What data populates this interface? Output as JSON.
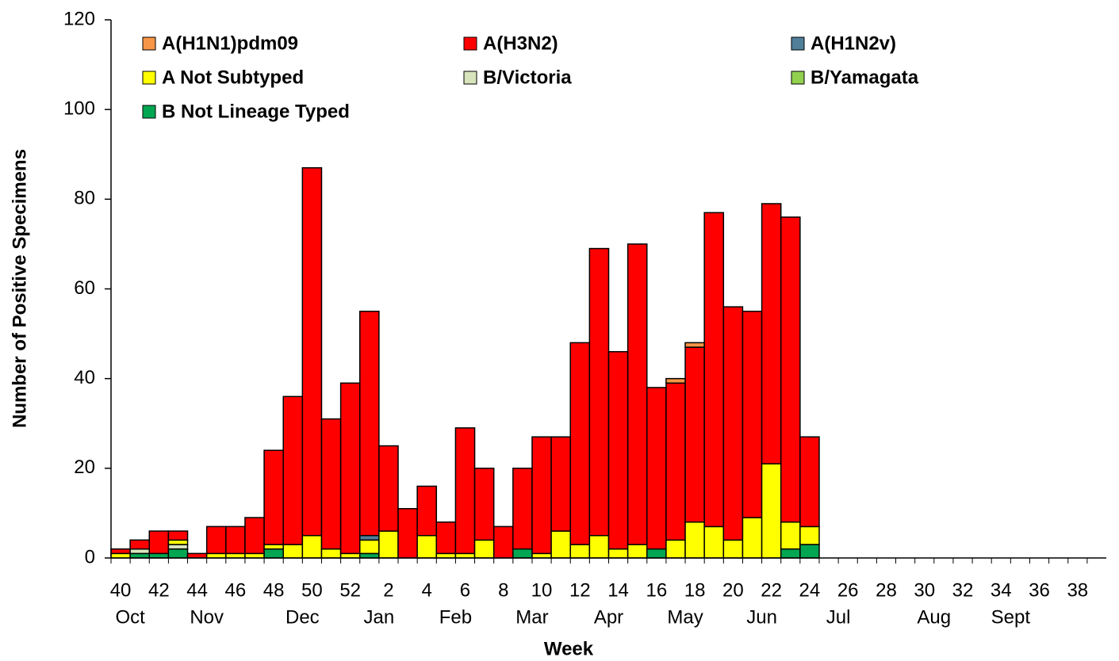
{
  "chart_data": {
    "type": "stacked_bar",
    "y_label": "Number of Positive Specimens",
    "x_label": "Week",
    "categories": [
      "40",
      null,
      "42",
      null,
      "44",
      null,
      "46",
      null,
      "48",
      null,
      "50",
      null,
      "52",
      null,
      "2",
      null,
      "4",
      null,
      "6",
      null,
      "8",
      null,
      "10",
      null,
      "12",
      null,
      "14",
      null,
      "16",
      null,
      "18",
      null,
      "20",
      null,
      "22",
      null,
      "24",
      null,
      "26",
      null,
      "28",
      null,
      "30",
      null,
      "32",
      null,
      "34",
      null,
      "36",
      null,
      "38",
      null
    ],
    "months": [
      "Oct",
      null,
      null,
      null,
      "Nov",
      null,
      null,
      null,
      null,
      "Dec",
      null,
      null,
      null,
      "Jan",
      null,
      null,
      null,
      "Feb",
      null,
      null,
      null,
      "Mar",
      null,
      null,
      null,
      "Apr",
      null,
      null,
      null,
      "May",
      null,
      null,
      null,
      "Jun",
      null,
      null,
      null,
      "Jul",
      null,
      null,
      null,
      null,
      "Aug",
      null,
      null,
      null,
      "Sept",
      null,
      null,
      null,
      null,
      null
    ],
    "ylim": [
      0,
      120
    ],
    "yticks": [
      0,
      20,
      40,
      60,
      80,
      100,
      120
    ],
    "grid": false,
    "series": [
      {
        "name": "A(H1N1)pdm09",
        "color": "#f79646",
        "values": [
          0,
          0,
          0,
          0,
          0,
          0,
          0,
          0,
          0,
          0,
          0,
          0,
          0,
          0,
          0,
          0,
          0,
          0,
          0,
          0,
          0,
          0,
          0,
          0,
          0,
          0,
          0,
          0,
          0,
          1,
          1,
          0,
          0,
          0,
          0,
          0,
          0,
          null,
          null,
          null,
          null,
          null,
          null,
          null,
          null,
          null,
          null,
          null,
          null,
          null,
          null,
          null
        ]
      },
      {
        "name": "A(H3N2)",
        "color": "#ff0000",
        "values": [
          1,
          2,
          5,
          2,
          1,
          6,
          6,
          8,
          21,
          33,
          82,
          29,
          38,
          50,
          19,
          11,
          11,
          7,
          28,
          16,
          7,
          18,
          26,
          21,
          45,
          64,
          44,
          67,
          36,
          35,
          39,
          70,
          52,
          46,
          58,
          68,
          20,
          null,
          null,
          null,
          null,
          null,
          null,
          null,
          null,
          null,
          null,
          null,
          null,
          null,
          null,
          null
        ]
      },
      {
        "name": "A(H1N2v)",
        "color": "#4f7f99",
        "values": [
          0,
          0,
          0,
          0,
          0,
          0,
          0,
          0,
          0,
          0,
          0,
          0,
          0,
          1,
          0,
          0,
          0,
          0,
          0,
          0,
          0,
          0,
          0,
          0,
          0,
          0,
          0,
          0,
          0,
          0,
          0,
          0,
          0,
          0,
          0,
          0,
          0,
          null,
          null,
          null,
          null,
          null,
          null,
          null,
          null,
          null,
          null,
          null,
          null,
          null,
          null,
          null
        ]
      },
      {
        "name": "A Not Subtyped",
        "color": "#ffff00",
        "values": [
          1,
          0,
          0,
          1,
          0,
          1,
          1,
          1,
          1,
          3,
          5,
          2,
          1,
          3,
          6,
          0,
          5,
          1,
          1,
          4,
          0,
          0,
          1,
          6,
          3,
          5,
          2,
          3,
          0,
          4,
          8,
          7,
          4,
          9,
          21,
          6,
          4,
          null,
          null,
          null,
          null,
          null,
          null,
          null,
          null,
          null,
          null,
          null,
          null,
          null,
          null,
          null
        ]
      },
      {
        "name": "B/Victoria",
        "color": "#d8e4bc",
        "values": [
          0,
          1,
          0,
          1,
          0,
          0,
          0,
          0,
          0,
          0,
          0,
          0,
          0,
          0,
          0,
          0,
          0,
          0,
          0,
          0,
          0,
          0,
          0,
          0,
          0,
          0,
          0,
          0,
          0,
          0,
          0,
          0,
          0,
          0,
          0,
          0,
          0,
          null,
          null,
          null,
          null,
          null,
          null,
          null,
          null,
          null,
          null,
          null,
          null,
          null,
          null,
          null
        ]
      },
      {
        "name": "B/Yamagata",
        "color": "#92d050",
        "values": [
          0,
          0,
          0,
          0,
          0,
          0,
          0,
          0,
          0,
          0,
          0,
          0,
          0,
          0,
          0,
          0,
          0,
          0,
          0,
          0,
          0,
          0,
          0,
          0,
          0,
          0,
          0,
          0,
          0,
          0,
          0,
          0,
          0,
          0,
          0,
          0,
          0,
          null,
          null,
          null,
          null,
          null,
          null,
          null,
          null,
          null,
          null,
          null,
          null,
          null,
          null,
          null
        ]
      },
      {
        "name": "B Not Lineage Typed",
        "color": "#00a651",
        "values": [
          0,
          1,
          1,
          2,
          0,
          0,
          0,
          0,
          2,
          0,
          0,
          0,
          0,
          1,
          0,
          0,
          0,
          0,
          0,
          0,
          0,
          2,
          0,
          0,
          0,
          0,
          0,
          0,
          2,
          0,
          0,
          0,
          0,
          0,
          0,
          2,
          3,
          null,
          null,
          null,
          null,
          null,
          null,
          null,
          null,
          null,
          null,
          null,
          null,
          null,
          null,
          null
        ]
      }
    ]
  }
}
